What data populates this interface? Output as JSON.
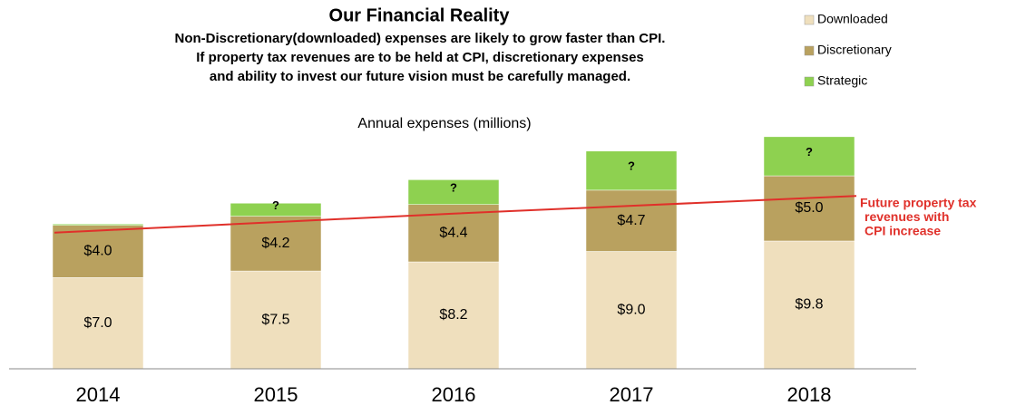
{
  "chart_data": {
    "type": "bar",
    "stacked": true,
    "title": "Our Financial Reality",
    "subtitle": [
      "Non-Discretionary(downloaded) expenses are likely to grow faster than CPI.",
      "If property tax revenues are to be held at CPI, discretionary expenses",
      "and ability to invest our future vision must be carefully managed."
    ],
    "axis_title": "Annual expenses (millions)",
    "categories": [
      "2014",
      "2015",
      "2016",
      "2017",
      "2018"
    ],
    "series": [
      {
        "name": "Downloaded",
        "color": "#efdfbd",
        "values": [
          7.0,
          7.5,
          8.2,
          9.0,
          9.8
        ],
        "value_labels": [
          "$7.0",
          "$7.5",
          "$8.2",
          "$9.0",
          "$9.8"
        ]
      },
      {
        "name": "Discretionary",
        "color": "#b9a15f",
        "values": [
          4.0,
          4.2,
          4.4,
          4.7,
          5.0
        ],
        "value_labels": [
          "$4.0",
          "$4.2",
          "$4.4",
          "$4.7",
          "$5.0"
        ]
      },
      {
        "name": "Strategic",
        "color": "#8ed150",
        "values": [
          0.1,
          1.0,
          1.9,
          3.0,
          3.0
        ],
        "value_labels": [
          null,
          "?",
          "?",
          "?",
          "?"
        ]
      }
    ],
    "line": {
      "color": "#e0302a",
      "values": [
        10.6,
        11.25,
        11.9,
        12.5,
        13.1
      ]
    },
    "annotation": [
      "Future property tax",
      "revenues with",
      "CPI increase"
    ],
    "ylim": [
      0,
      18
    ],
    "legend": "top-right"
  }
}
